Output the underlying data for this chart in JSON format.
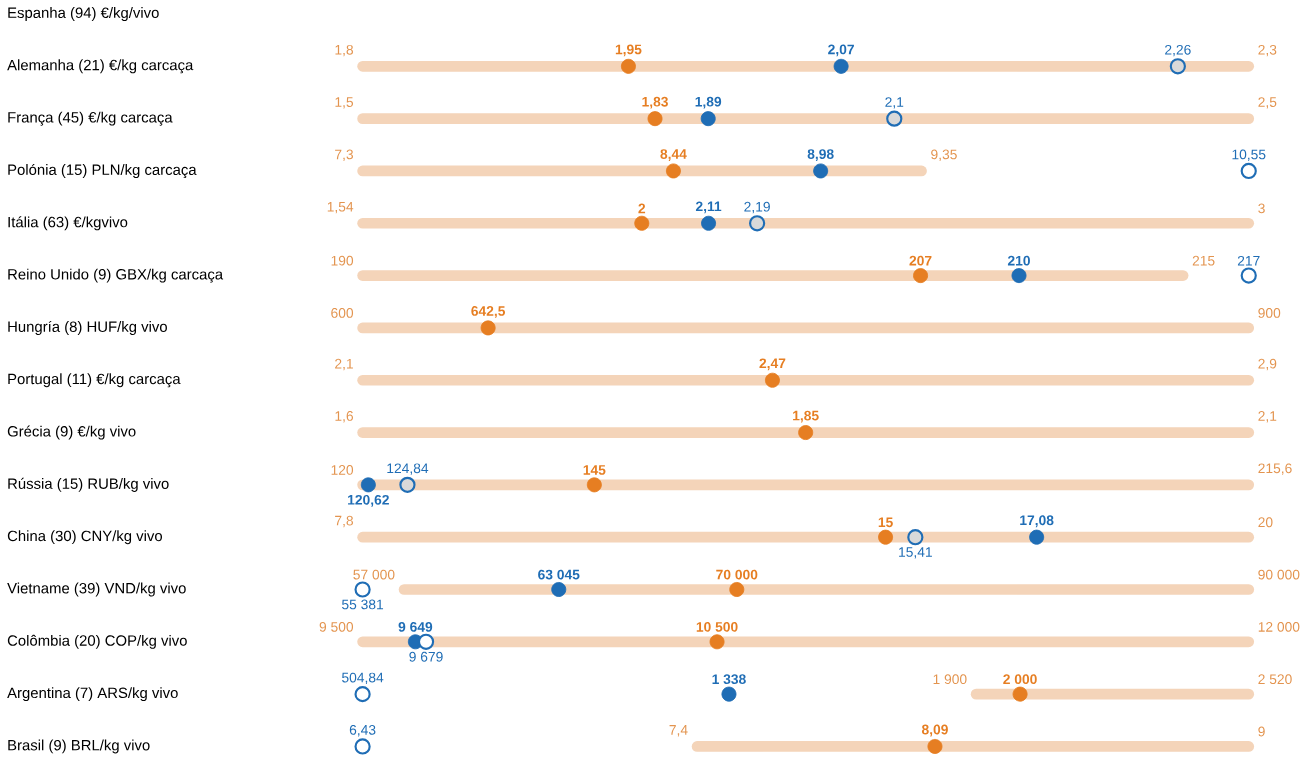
{
  "chart_data": {
    "type": "other",
    "categories": [
      "Espanha (94)  €/kg/vivo",
      "Alemanha (21) €/kg carcaça",
      "França (45) €/kg carcaça",
      "Polónia (15) PLN/kg carcaça",
      "Itália (63) €/kgvivo",
      "Reino Unido (9) GBX/kg carcaça",
      "Hungría (8) HUF/kg vivo",
      "Portugal (11) €/kg carcaça",
      "Grécia (9) €/kg vivo",
      "Rússia (15) RUB/kg vivo",
      "China (30) CNY/kg vivo",
      "Vietname (39) VND/kg vivo",
      "Colômbia (20) COP/kg vivo",
      "Argentina (7) ARS/kg vivo",
      "Brasil (9) BRL/kg vivo"
    ],
    "series": [
      {
        "type": "scatter",
        "marker": "none",
        "color": "#e3944f",
        "values": [
          null,
          1.8,
          1.5,
          7.3,
          1.54,
          190,
          600,
          2.1,
          1.6,
          120,
          7.8,
          57000,
          9500,
          1900,
          7.4
        ],
        "value_labels": [
          null,
          "1,8",
          "1,5",
          "7,3",
          "1,54",
          "190",
          "600",
          "2,1",
          "1,6",
          "120",
          "7,8",
          "57 000",
          "9 500",
          "1 900",
          "7,4"
        ]
      },
      {
        "type": "scatter",
        "marker": "none",
        "color": "#e3944f",
        "values": [
          null,
          2.3,
          2.5,
          9.35,
          3,
          215,
          900,
          2.9,
          2.1,
          215.6,
          20,
          90000,
          12000,
          2520,
          9
        ],
        "value_labels": [
          null,
          "2,3",
          "2,5",
          "9,35",
          "3",
          "215",
          "900",
          "2,9",
          "2,1",
          "215,6",
          "20",
          "90 000",
          "12 000",
          "2 520",
          "9"
        ]
      },
      {
        "type": "scatter",
        "marker": "circle",
        "color": "#e67e22",
        "values": [
          null,
          1.95,
          1.83,
          8.44,
          2,
          207,
          642.5,
          2.47,
          1.85,
          145,
          15,
          70000,
          10500,
          2000,
          8.09
        ],
        "value_labels": [
          null,
          "1,95",
          "1,83",
          "8,44",
          "2",
          "207",
          "642,5",
          "2,47",
          "1,85",
          "145",
          "15",
          "70 000",
          "10 500",
          "2 000",
          "8,09"
        ]
      },
      {
        "type": "scatter",
        "marker": "circle",
        "color": "#1f6db5",
        "values": [
          null,
          2.07,
          1.89,
          8.98,
          2.11,
          210,
          null,
          null,
          null,
          120.62,
          17.08,
          63045,
          9649,
          1338,
          null
        ],
        "value_labels": [
          null,
          "2,07",
          "1,89",
          "8,98",
          "2,11",
          "210",
          null,
          null,
          null,
          "120,62",
          "17,08",
          "63 045",
          "9 649",
          "1 338",
          null
        ]
      },
      {
        "type": "scatter",
        "marker": "circle",
        "color": "#1f6db5",
        "colors": [
          null,
          "#d9d9d9",
          "#d9d9d9",
          "#ffffff",
          "#d9d9d9",
          "#ffffff",
          null,
          null,
          null,
          "#d9d9d9",
          "#d9d9d9",
          "#ffffff",
          "#ffffff",
          "#ffffff",
          "#ffffff"
        ],
        "values": [
          null,
          2.26,
          2.1,
          10.55,
          2.19,
          217,
          null,
          null,
          null,
          124.84,
          15.41,
          55381,
          9679,
          504.84,
          6.43
        ],
        "value_labels": [
          null,
          "2,26",
          "2,1",
          "10,55",
          "2,19",
          "217",
          null,
          null,
          null,
          "124,84",
          "15,41",
          "55 381",
          "9 679",
          "504,84",
          "6,43"
        ]
      }
    ]
  }
}
